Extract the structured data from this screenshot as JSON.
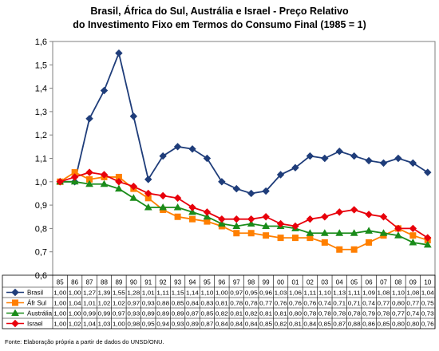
{
  "chart_data": {
    "type": "line",
    "title_line1": "Brasil, África do Sul, Austrália e Israel - Preço Relativo",
    "title_line2": "do Investimento Fixo em Termos do Consumo Final (1985 = 1)",
    "categories": [
      "85",
      "86",
      "87",
      "88",
      "89",
      "90",
      "91",
      "92",
      "93",
      "94",
      "95",
      "96",
      "97",
      "98",
      "99",
      "00",
      "01",
      "02",
      "03",
      "04",
      "05",
      "06",
      "07",
      "08",
      "09",
      "10"
    ],
    "ylim": [
      0.6,
      1.6
    ],
    "yticks": [
      "1,6",
      "1,5",
      "1,4",
      "1,3",
      "1,2",
      "1,1",
      "1,0",
      "0,9",
      "0,8",
      "0,7",
      "0,6"
    ],
    "grid": false,
    "legend": "table-below",
    "series": [
      {
        "name": "Brasil",
        "color": "#1f3d7a",
        "marker": "diamond",
        "values": [
          1.0,
          1.0,
          1.27,
          1.39,
          1.55,
          1.28,
          1.01,
          1.11,
          1.15,
          1.14,
          1.1,
          1.0,
          0.97,
          0.95,
          0.96,
          1.03,
          1.06,
          1.11,
          1.1,
          1.13,
          1.11,
          1.09,
          1.08,
          1.1,
          1.08,
          1.04
        ],
        "labels": [
          "1,00",
          "1,00",
          "1,27",
          "1,39",
          "1,55",
          "1,28",
          "1,01",
          "1,11",
          "1,15",
          "1,14",
          "1,10",
          "1,00",
          "0,97",
          "0,95",
          "0,96",
          "1,03",
          "1,06",
          "1,11",
          "1,10",
          "1,13",
          "1,11",
          "1,09",
          "1,08",
          "1,10",
          "1,08",
          "1,04"
        ]
      },
      {
        "name": "Áfr Sul",
        "color": "#ff7f00",
        "marker": "square",
        "values": [
          1.0,
          1.04,
          1.01,
          1.02,
          1.02,
          0.97,
          0.93,
          0.88,
          0.85,
          0.84,
          0.83,
          0.81,
          0.78,
          0.78,
          0.77,
          0.76,
          0.76,
          0.76,
          0.74,
          0.71,
          0.71,
          0.74,
          0.77,
          0.8,
          0.77,
          0.75
        ],
        "labels": [
          "1,00",
          "1,04",
          "1,01",
          "1,02",
          "1,02",
          "0,97",
          "0,93",
          "0,88",
          "0,85",
          "0,84",
          "0,83",
          "0,81",
          "0,78",
          "0,78",
          "0,77",
          "0,76",
          "0,76",
          "0,76",
          "0,74",
          "0,71",
          "0,71",
          "0,74",
          "0,77",
          "0,80",
          "0,77",
          "0,75"
        ]
      },
      {
        "name": "Austrália",
        "color": "#1a8c1a",
        "marker": "triangle",
        "values": [
          1.0,
          1.0,
          0.99,
          0.99,
          0.97,
          0.93,
          0.89,
          0.89,
          0.89,
          0.87,
          0.85,
          0.82,
          0.81,
          0.82,
          0.81,
          0.81,
          0.8,
          0.78,
          0.78,
          0.78,
          0.78,
          0.79,
          0.78,
          0.77,
          0.74,
          0.73
        ],
        "labels": [
          "1,00",
          "1,00",
          "0,99",
          "0,99",
          "0,97",
          "0,93",
          "0,89",
          "0,89",
          "0,89",
          "0,87",
          "0,85",
          "0,82",
          "0,81",
          "0,82",
          "0,81",
          "0,81",
          "0,80",
          "0,78",
          "0,78",
          "0,78",
          "0,78",
          "0,79",
          "0,78",
          "0,77",
          "0,74",
          "0,73"
        ]
      },
      {
        "name": "Israel",
        "color": "#e8000b",
        "marker": "diamond",
        "values": [
          1.0,
          1.02,
          1.04,
          1.03,
          1.0,
          0.98,
          0.95,
          0.94,
          0.93,
          0.89,
          0.87,
          0.84,
          0.84,
          0.84,
          0.85,
          0.82,
          0.81,
          0.84,
          0.85,
          0.87,
          0.88,
          0.86,
          0.85,
          0.8,
          0.8,
          0.76
        ],
        "labels": [
          "1,00",
          "1,02",
          "1,04",
          "1,03",
          "1,00",
          "0,98",
          "0,95",
          "0,94",
          "0,93",
          "0,89",
          "0,87",
          "0,84",
          "0,84",
          "0,84",
          "0,85",
          "0,82",
          "0,81",
          "0,84",
          "0,85",
          "0,87",
          "0,88",
          "0,86",
          "0,85",
          "0,80",
          "0,80",
          "0,76"
        ]
      }
    ]
  },
  "footnote": "Fonte: Elaboração própria a partir de dados do UNSD/ONU."
}
